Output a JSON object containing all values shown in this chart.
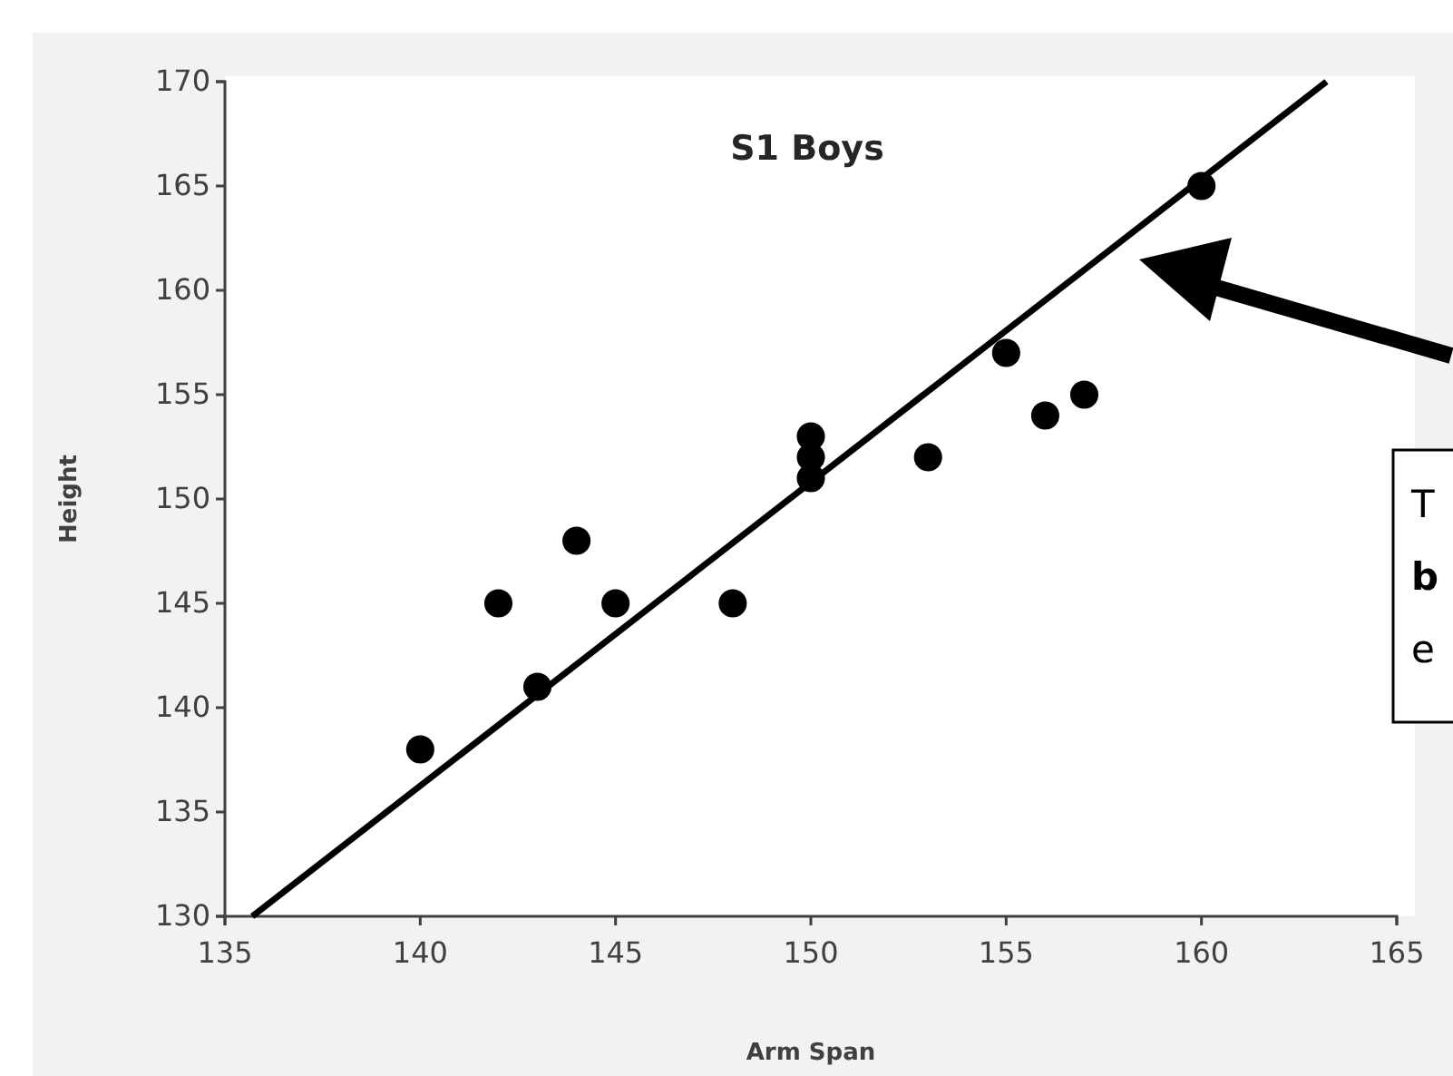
{
  "chart_data": {
    "type": "scatter",
    "title": "S1 Boys",
    "xlabel": "Arm Span",
    "ylabel": "Height",
    "xlim": [
      135,
      165
    ],
    "xticks": [
      135,
      140,
      145,
      150,
      155,
      160,
      165
    ],
    "ylim": [
      130,
      170
    ],
    "yticks": [
      130,
      135,
      140,
      145,
      150,
      155,
      160,
      165,
      170
    ],
    "grid": false,
    "marker": "circle",
    "series": [
      {
        "color": "#000000",
        "x": [
          140,
          142,
          143,
          144,
          145,
          148,
          150,
          150,
          150,
          153,
          155,
          156,
          157,
          160
        ],
        "values": [
          138,
          145,
          141,
          148,
          145,
          145,
          153,
          152,
          151,
          152,
          157,
          154,
          155,
          165
        ]
      },
      {
        "type": "line",
        "color": "#000000",
        "line_style": "solid",
        "marker": "none",
        "x": [
          135.7,
          163.2
        ],
        "values": [
          130,
          170
        ]
      }
    ],
    "annotations": [
      "T",
      "b",
      "e"
    ]
  }
}
